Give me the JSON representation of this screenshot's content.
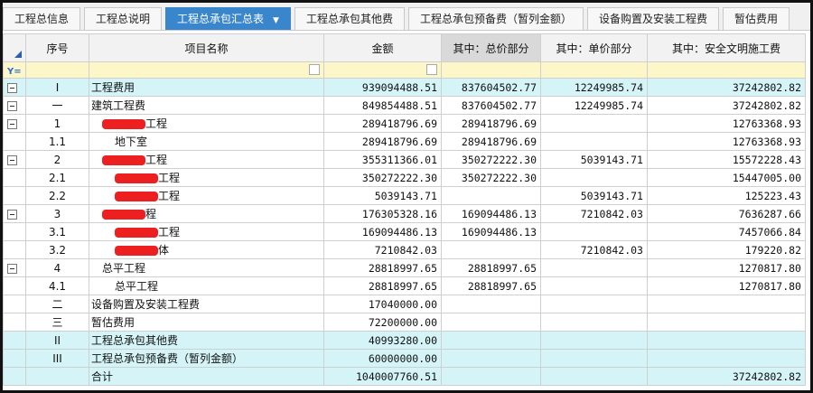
{
  "tabs": [
    "工程总信息",
    "工程总说明",
    "工程总承包汇总表",
    "工程总承包其他费",
    "工程总承包预备费（暂列金额）",
    "设备购置及安装工程费",
    "暂估费用"
  ],
  "table": {
    "columns": [
      "序号",
      "项目名称",
      "金额",
      "其中：总价部分",
      "其中：单价部分",
      "其中：安全文明施工费"
    ],
    "rows": [
      [
        "I",
        "工程费用",
        "939094488.51",
        "837604502.77",
        "12249985.74",
        "37242802.82"
      ],
      [
        "一",
        "建筑工程费",
        "849854488.51",
        "837604502.77",
        "12249985.74",
        "37242802.82"
      ],
      [
        "1",
        "工程",
        "289418796.69",
        "289418796.69",
        null,
        "12763368.93"
      ],
      [
        "1.1",
        "地下室",
        "289418796.69",
        "289418796.69",
        null,
        "12763368.93"
      ],
      [
        "2",
        "工程",
        "355311366.01",
        "350272222.30",
        "5039143.71",
        "15572228.43"
      ],
      [
        "2.1",
        "工程",
        "350272222.30",
        "350272222.30",
        null,
        "15447005.00"
      ],
      [
        "2.2",
        "工程",
        "5039143.71",
        null,
        "5039143.71",
        "125223.43"
      ],
      [
        "3",
        "程",
        "176305328.16",
        "169094486.13",
        "7210842.03",
        "7636287.66"
      ],
      [
        "3.1",
        "工程",
        "169094486.13",
        "169094486.13",
        null,
        "7457066.84"
      ],
      [
        "3.2",
        "体",
        "7210842.03",
        null,
        "7210842.03",
        "179220.82"
      ],
      [
        "4",
        "总平工程",
        "28818997.65",
        "28818997.65",
        null,
        "1270817.80"
      ],
      [
        "4.1",
        "总平工程",
        "28818997.65",
        "28818997.65",
        null,
        "1270817.80"
      ],
      [
        "二",
        "设备购置及安装工程费",
        "17040000.00",
        null,
        null,
        null
      ],
      [
        "三",
        "暂估费用",
        "72200000.00",
        null,
        null,
        null
      ],
      [
        "II",
        "工程总承包其他费",
        "40993280.00",
        null,
        null,
        null
      ],
      [
        "III",
        "工程总承包预备费（暂列金额）",
        "60000000.00",
        null,
        null,
        null
      ],
      [
        null,
        "合计",
        "1040007760.51",
        null,
        null,
        "37242802.82"
      ]
    ]
  }
}
